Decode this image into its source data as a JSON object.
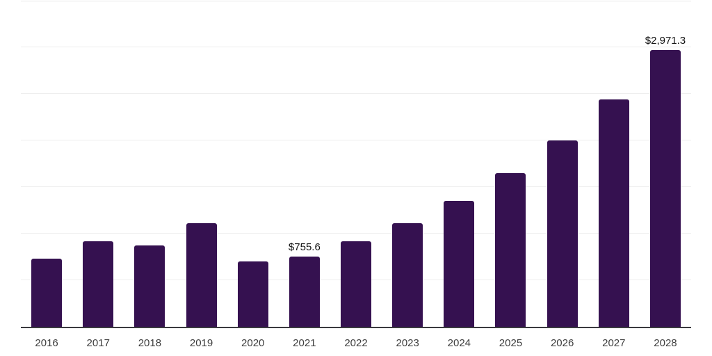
{
  "chart_data": {
    "type": "bar",
    "title": "",
    "xlabel": "",
    "ylabel": "",
    "categories": [
      "2016",
      "2017",
      "2018",
      "2019",
      "2020",
      "2021",
      "2022",
      "2023",
      "2024",
      "2025",
      "2026",
      "2027",
      "2028"
    ],
    "values": [
      730,
      915,
      870,
      1115,
      705,
      755.6,
      915,
      1115,
      1350,
      1650,
      2000,
      2440,
      2971.3
    ],
    "point_labels": [
      "",
      "",
      "",
      "",
      "",
      "$755.6",
      "",
      "",
      "",
      "",
      "",
      "",
      "$2,971.3"
    ],
    "ylim": [
      0,
      3500
    ],
    "gridline_step": 500,
    "grid": true,
    "legend_position": "none",
    "y_axis_labels_visible": false,
    "colors": {
      "bar": "#351150",
      "axis_line": "#3a3a3e",
      "gridline": "#eeeeee",
      "top_border": "#e9e9e9",
      "value_label": "#111111",
      "tick_label": "#3d3d3d",
      "background": "#ffffff"
    }
  }
}
